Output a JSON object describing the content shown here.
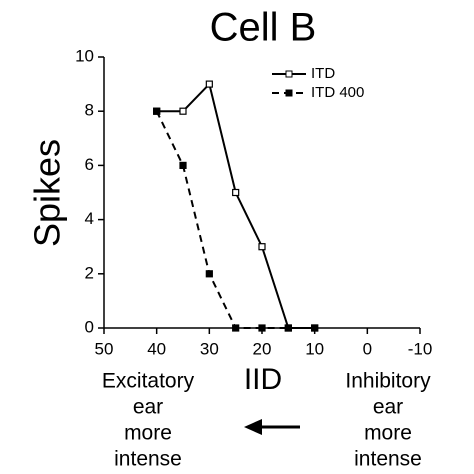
{
  "chart_data": {
    "type": "line",
    "title": "Cell B",
    "x_label": "IID",
    "y_label": "Spikes",
    "x": [
      40,
      35,
      30,
      25,
      20,
      15,
      10
    ],
    "series": [
      {
        "name": "ITD",
        "color": "#000000",
        "style": "solid",
        "marker": "open",
        "values": [
          8,
          8,
          9,
          5,
          3,
          0,
          0
        ]
      },
      {
        "name": "ITD 400",
        "color": "#000000",
        "style": "dashed",
        "marker": "filled",
        "values": [
          8,
          6,
          2,
          0,
          0,
          0,
          0
        ]
      }
    ],
    "xlim": [
      50,
      -10
    ],
    "xticks": [
      50,
      40,
      30,
      20,
      10,
      0,
      -10
    ],
    "ylim": [
      0,
      10
    ],
    "yticks": [
      0,
      2,
      4,
      6,
      8,
      10
    ],
    "legend": "upper right",
    "annotations": [
      [
        "Excitatory",
        "ear",
        "more",
        "intense"
      ],
      [
        "Inhibitory",
        "ear",
        "more",
        "intense"
      ]
    ]
  }
}
